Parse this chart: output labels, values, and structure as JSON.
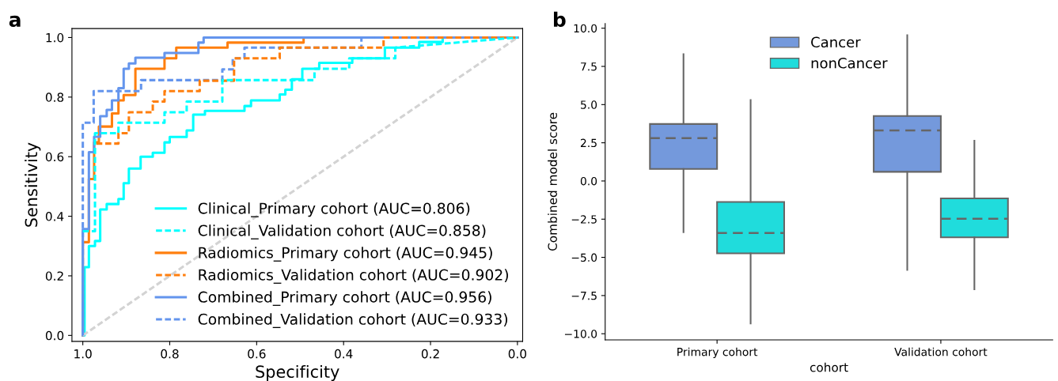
{
  "chart_data": [
    {
      "type": "line",
      "title": "a",
      "xlabel": "Specificity",
      "ylabel": "Sensitivity",
      "xlim": [
        1.025,
        -0.012
      ],
      "ylim": [
        -0.02,
        1.03
      ],
      "xticks": [
        {
          "value": 1.0,
          "label": "1.0"
        },
        {
          "value": 0.8,
          "label": "0.8"
        },
        {
          "value": 0.6,
          "label": "0.6"
        },
        {
          "value": 0.4,
          "label": "0.4"
        },
        {
          "value": 0.2,
          "label": "0.2"
        },
        {
          "value": 0.0,
          "label": "0.0"
        }
      ],
      "yticks": [
        {
          "value": 0.0,
          "label": "0.0"
        },
        {
          "value": 0.2,
          "label": "0.2"
        },
        {
          "value": 0.4,
          "label": "0.4"
        },
        {
          "value": 0.6,
          "label": "0.6"
        },
        {
          "value": 0.8,
          "label": "0.8"
        },
        {
          "value": 1.0,
          "label": "1.0"
        }
      ],
      "legend": "bottom right",
      "grid": false,
      "marker": "none",
      "series": [
        {
          "name": "Clinical_Primary cohort (AUC=0.806)",
          "color": "#00ffff",
          "line_style": "solid",
          "x": [
            1.0,
            0.996,
            0.996,
            0.986,
            0.986,
            0.972,
            0.972,
            0.96,
            0.96,
            0.945,
            0.945,
            0.918,
            0.918,
            0.906,
            0.906,
            0.894,
            0.894,
            0.867,
            0.867,
            0.839,
            0.839,
            0.812,
            0.812,
            0.8,
            0.8,
            0.761,
            0.761,
            0.746,
            0.746,
            0.719,
            0.719,
            0.628,
            0.628,
            0.613,
            0.613,
            0.547,
            0.547,
            0.534,
            0.534,
            0.519,
            0.519,
            0.495,
            0.495,
            0.456,
            0.456,
            0.38,
            0.38,
            0.305,
            0.305,
            0.226,
            0.226,
            0.172,
            0.172,
            0.0
          ],
          "values": [
            0.0,
            0.0,
            0.229,
            0.229,
            0.3,
            0.3,
            0.317,
            0.317,
            0.423,
            0.423,
            0.441,
            0.441,
            0.458,
            0.458,
            0.511,
            0.511,
            0.56,
            0.56,
            0.6,
            0.6,
            0.613,
            0.613,
            0.648,
            0.648,
            0.666,
            0.666,
            0.688,
            0.688,
            0.741,
            0.741,
            0.754,
            0.754,
            0.77,
            0.77,
            0.789,
            0.789,
            0.809,
            0.809,
            0.825,
            0.825,
            0.86,
            0.86,
            0.895,
            0.895,
            0.915,
            0.915,
            0.93,
            0.93,
            0.966,
            0.966,
            0.985,
            0.985,
            1.0,
            1.0
          ]
        },
        {
          "name": "Clinical_Validation cohort (AUC=0.858)",
          "color": "#00ffff",
          "line_style": "dashed",
          "x": [
            1.0,
            0.972,
            0.972,
            0.918,
            0.918,
            0.812,
            0.812,
            0.761,
            0.761,
            0.679,
            0.679,
            0.467,
            0.467,
            0.387,
            0.387,
            0.281,
            0.281,
            0.0
          ],
          "values": [
            0.35,
            0.35,
            0.679,
            0.679,
            0.714,
            0.714,
            0.749,
            0.749,
            0.785,
            0.785,
            0.857,
            0.857,
            0.895,
            0.895,
            0.93,
            0.93,
            0.966,
            1.0
          ]
        },
        {
          "name": "Radiomics_Primary cohort (AUC=0.945)",
          "color": "#ff7f0e",
          "line_style": "solid",
          "x": [
            1.0,
            1.0,
            0.986,
            0.986,
            0.974,
            0.974,
            0.963,
            0.963,
            0.933,
            0.933,
            0.918,
            0.918,
            0.906,
            0.906,
            0.879,
            0.879,
            0.812,
            0.812,
            0.785,
            0.785,
            0.667,
            0.667,
            0.492,
            0.492,
            0.0
          ],
          "values": [
            0.0,
            0.313,
            0.313,
            0.525,
            0.525,
            0.648,
            0.648,
            0.701,
            0.701,
            0.745,
            0.745,
            0.789,
            0.789,
            0.807,
            0.807,
            0.895,
            0.895,
            0.93,
            0.93,
            0.966,
            0.966,
            0.983,
            0.983,
            1.0,
            1.0
          ]
        },
        {
          "name": "Radiomics_Validation cohort (AUC=0.902)",
          "color": "#ff7f0e",
          "line_style": "dashed",
          "x": [
            0.969,
            0.918,
            0.918,
            0.894,
            0.894,
            0.839,
            0.839,
            0.812,
            0.812,
            0.731,
            0.731,
            0.652,
            0.652,
            0.547,
            0.547,
            0.308,
            0.308,
            0.0
          ],
          "values": [
            0.644,
            0.644,
            0.679,
            0.679,
            0.749,
            0.749,
            0.785,
            0.785,
            0.82,
            0.82,
            0.855,
            0.855,
            0.93,
            0.93,
            0.966,
            0.966,
            1.0,
            1.0
          ]
        },
        {
          "name": "Combined_Primary cohort (AUC=0.956)",
          "color": "#6495ed",
          "line_style": "solid",
          "x": [
            1.0,
            1.0,
            0.986,
            0.986,
            0.974,
            0.974,
            0.96,
            0.96,
            0.945,
            0.945,
            0.933,
            0.933,
            0.918,
            0.918,
            0.906,
            0.906,
            0.894,
            0.894,
            0.879,
            0.879,
            0.812,
            0.812,
            0.734,
            0.734,
            0.722,
            0.722,
            0.0
          ],
          "values": [
            0.0,
            0.357,
            0.357,
            0.615,
            0.615,
            0.667,
            0.667,
            0.736,
            0.736,
            0.757,
            0.757,
            0.789,
            0.789,
            0.83,
            0.83,
            0.895,
            0.895,
            0.913,
            0.913,
            0.932,
            0.932,
            0.948,
            0.948,
            0.983,
            0.983,
            1.0,
            1.0
          ]
        },
        {
          "name": "Combined_Validation cohort (AUC=0.933)",
          "color": "#6495ed",
          "line_style": "dashed",
          "x": [
            1.0,
            1.0,
            0.975,
            0.975,
            0.866,
            0.866,
            0.679,
            0.679,
            0.655,
            0.655,
            0.628,
            0.628,
            0.359,
            0.359,
            0.0
          ],
          "values": [
            0.0,
            0.714,
            0.714,
            0.82,
            0.82,
            0.857,
            0.857,
            0.893,
            0.893,
            0.93,
            0.93,
            0.966,
            0.966,
            1.0,
            1.0
          ]
        },
        {
          "color": "#d3d3d3",
          "line_style": "dashed",
          "x": [
            1.0,
            0.0
          ],
          "values": [
            0.0,
            1.0
          ]
        }
      ]
    },
    {
      "type": "box",
      "title": "b",
      "xlabel": "cohort",
      "ylabel": "Combined model score",
      "categories": [
        "Primary cohort",
        "Validation cohort"
      ],
      "ylim": [
        -10.4,
        10.3
      ],
      "yticks": [
        {
          "value": -10.0,
          "label": "−10.0"
        },
        {
          "value": -7.5,
          "label": "−7.5"
        },
        {
          "value": -5.0,
          "label": "−5.0"
        },
        {
          "value": -2.5,
          "label": "−2.5"
        },
        {
          "value": 0.0,
          "label": "0.0"
        },
        {
          "value": 2.5,
          "label": "2.5"
        },
        {
          "value": 5.0,
          "label": "5.0"
        },
        {
          "value": 7.5,
          "label": "7.5"
        },
        {
          "value": 10.0,
          "label": "10.0"
        }
      ],
      "legend": "top",
      "grid": false,
      "series": [
        {
          "name": "Cancer",
          "color": "#7499dc",
          "boxes": [
            {
              "low": -3.35,
              "q1": 0.79,
              "median": 2.81,
              "q3": 3.73,
              "high": 8.3
            },
            {
              "low": -5.82,
              "q1": 0.6,
              "median": 3.31,
              "q3": 4.25,
              "high": 9.54
            }
          ]
        },
        {
          "name": "nonCancer",
          "color": "#20dcdc",
          "boxes": [
            {
              "low": -9.33,
              "q1": -4.74,
              "median": -3.4,
              "q3": -1.37,
              "high": 5.3
            },
            {
              "low": -7.09,
              "q1": -3.69,
              "median": -2.47,
              "q3": -1.14,
              "high": 2.63
            }
          ]
        }
      ]
    }
  ]
}
